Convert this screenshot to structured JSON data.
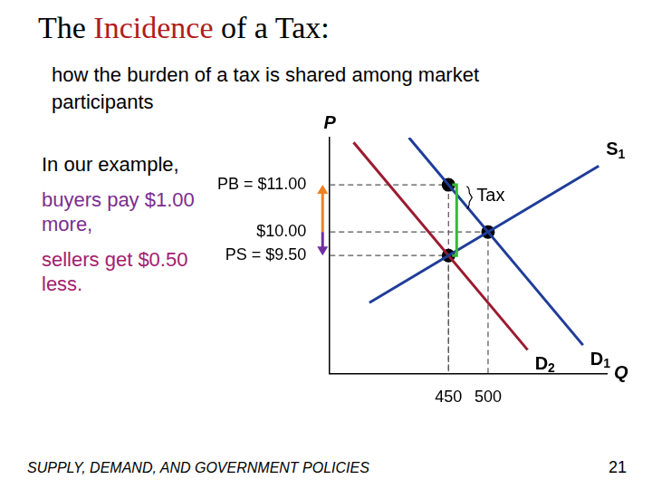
{
  "slide": {
    "title": "The Incidence of a Tax:",
    "title_highlight": "Incidence",
    "subtitle": "how the burden of a tax is shared among market participants",
    "notes": [
      {
        "text": "In our example,",
        "color": "#000000"
      },
      {
        "text": "buyers pay $1.00 more,",
        "color": "#7a2e8e"
      },
      {
        "text": "sellers get $0.50 less.",
        "color": "#a3206e"
      }
    ],
    "footer": "SUPPLY, DEMAND, AND GOVERNMENT POLICIES",
    "page": 21
  },
  "chart_data": {
    "type": "line",
    "xlabel": "Q",
    "ylabel": "P",
    "xlim": [
      300,
      650
    ],
    "ylim": [
      7,
      12
    ],
    "xticks": [
      450,
      500
    ],
    "yticks": [
      {
        "value": 9.5,
        "label": "PS = $9.50"
      },
      {
        "value": 10,
        "label": "$10.00"
      },
      {
        "value": 11,
        "label": "PB = $11.00"
      }
    ],
    "grid": false,
    "series": [
      {
        "name": "S1",
        "color": "#1f3c99",
        "x": [
          350,
          640
        ],
        "values": [
          8.5,
          11.4
        ]
      },
      {
        "name": "D1",
        "color": "#1f3c99",
        "x": [
          400,
          620
        ],
        "values": [
          12,
          7.6
        ]
      },
      {
        "name": "D2",
        "color": "#9b1b30",
        "x": [
          330,
          550
        ],
        "values": [
          11.9,
          7.5
        ]
      },
      {
        "color": "#000000",
        "marker": "circle",
        "line_style": "none",
        "x": [
          450,
          500,
          450
        ],
        "values": [
          11,
          10,
          9.5
        ]
      }
    ],
    "annotations": [
      {
        "text": "Tax",
        "x": 450,
        "from": 9.5,
        "to": 11,
        "color": "#33bb33"
      }
    ],
    "arrows": [
      {
        "from": 10,
        "to": 11,
        "color": "#f08020"
      },
      {
        "from": 10,
        "to": 9.5,
        "color": "#7030a0"
      }
    ]
  }
}
